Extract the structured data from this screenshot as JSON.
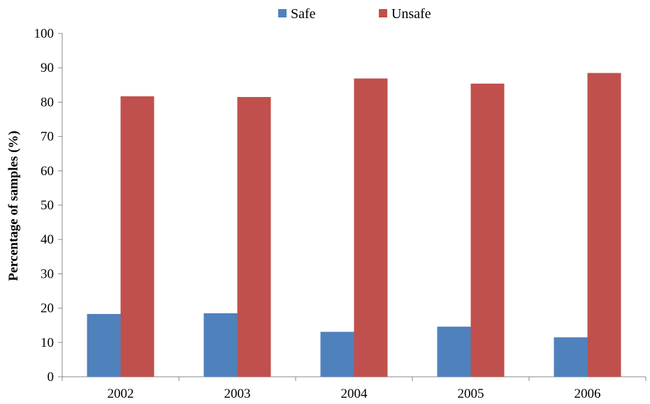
{
  "chart_data": {
    "type": "bar",
    "title": "",
    "xlabel": "",
    "ylabel": "Percentage of samples (%)",
    "ylim": [
      0,
      100
    ],
    "yticks": [
      0,
      10,
      20,
      30,
      40,
      50,
      60,
      70,
      80,
      90,
      100
    ],
    "categories": [
      "2002",
      "2003",
      "2004",
      "2005",
      "2006"
    ],
    "legend_position": "top-center",
    "grid": false,
    "series": [
      {
        "name": "Safe",
        "color": "#4F81BD",
        "values": [
          18.3,
          18.5,
          13.1,
          14.6,
          11.5
        ]
      },
      {
        "name": "Unsafe",
        "color": "#C0504D",
        "values": [
          81.7,
          81.5,
          86.9,
          85.4,
          88.5
        ]
      }
    ]
  }
}
